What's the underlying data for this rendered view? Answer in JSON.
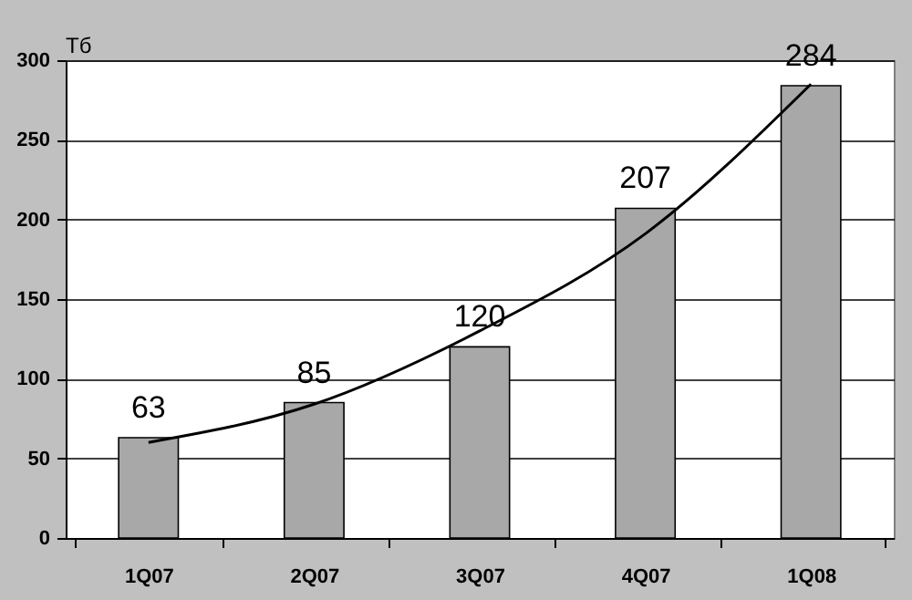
{
  "chart_data": {
    "type": "bar",
    "ylabel": "Тб",
    "categories": [
      "1Q07",
      "2Q07",
      "3Q07",
      "4Q07",
      "1Q08"
    ],
    "series": [
      {
        "color": "#a8a8a8",
        "values": [
          63,
          85,
          120,
          207,
          284
        ],
        "value_labels": [
          "63",
          "85",
          "120",
          "207",
          "284"
        ]
      },
      {
        "type": "line",
        "color": "#000000",
        "x": [
          "1Q07",
          "2Q07",
          "3Q07",
          "4Q07",
          "1Q08"
        ],
        "values": [
          60,
          84,
          130,
          191,
          285
        ]
      }
    ],
    "ylim": [
      0,
      300
    ],
    "yticks": [
      0,
      50,
      100,
      150,
      200,
      250,
      300
    ],
    "grid": "y",
    "marker": "none"
  }
}
